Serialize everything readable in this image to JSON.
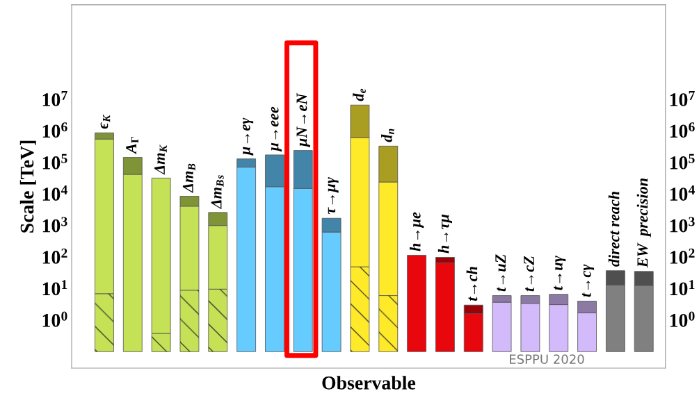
{
  "chart_data": {
    "type": "bar",
    "log": true,
    "categories": [
      "ϵ$_{K}$",
      "A$_{Γ}$",
      "Δm$_{K}$",
      "Δm$_{B}$",
      "Δm$_{B}$$_{s}$",
      "μ→eγ",
      "μ→eee",
      "μN→eN",
      "τ→μγ",
      "d$_{e}$",
      "d$_{n}$",
      "h→μe",
      "h→τμ",
      "t→ch",
      "t→uZ",
      "t→cZ",
      "t→uγ",
      "t→cγ",
      "direct reach",
      "EW  precision"
    ],
    "series": [
      {
        "colors": [
          "#c5e155",
          "#c5e155",
          "#c5e155",
          "#c5e155",
          "#c5e155",
          "#66ccff",
          "#66ccff",
          "#66ccff",
          "#66ccff",
          "#ffea2a",
          "#ffea2a",
          "#e8070d",
          "#e8070d",
          "#e8070d",
          "#d3bafb",
          "#d3bafb",
          "#d3bafb",
          "#d3bafb",
          "#808080",
          "#808080"
        ],
        "base": [
          0.1,
          null,
          0.1,
          0.1,
          0.1,
          null,
          null,
          null,
          null,
          0.1,
          0.1,
          null,
          null,
          null,
          null,
          null,
          null,
          null,
          null,
          null
        ],
        "values": [
          6.8,
          null,
          0.28,
          8.8,
          9.5,
          null,
          null,
          null,
          null,
          49,
          5.9,
          null,
          null,
          null,
          null,
          null,
          null,
          null,
          null,
          null
        ]
      },
      {
        "colors": [
          "#c5e155",
          "#c5e155",
          "#c5e155",
          "#c5e155",
          "#c5e155",
          "#66ccff",
          "#66ccff",
          "#66ccff",
          "#66ccff",
          "#ffea2a",
          "#ffea2a",
          "#e8070d",
          "#e8070d",
          "#e8070d",
          "#d3bafb",
          "#d3bafb",
          "#d3bafb",
          "#d3bafb",
          "#808080",
          "#808080"
        ],
        "base": [
          6.9,
          0.1,
          0.38,
          8.9,
          9.6,
          0.1,
          0.1,
          0.1,
          0.1,
          49.1,
          6.0,
          0.1,
          0.1,
          0.1,
          0.1,
          0.1,
          0.1,
          0.1,
          0.1,
          0.1
        ],
        "values": [
          550000,
          42000,
          32000,
          4100,
          990,
          71000,
          17000,
          15000,
          620,
          610000,
          24000,
          114,
          66,
          1.5,
          3.6,
          3.3,
          3.0,
          1.6,
          12.9,
          12.5
        ]
      },
      {
        "colors": [
          "#7f9437",
          "#7f9437",
          "#7f9437",
          "#7f9437",
          "#7f9437",
          "#4385a8",
          "#4385a8",
          "#4385a8",
          "#4385a8",
          "#a99e21",
          "#a99e21",
          "#9a0208",
          "#9a0208",
          "#9a0208",
          "#8c7aa4",
          "#8c7aa4",
          "#8c7aa4",
          "#8c7aa4",
          "#4f4f4f",
          "#4f4f4f"
        ],
        "base": [
          550000,
          42000,
          null,
          4100,
          1000,
          71000,
          17000,
          15000,
          620,
          610000,
          24000,
          null,
          66,
          1.6,
          3.7,
          3.4,
          3.1,
          1.7,
          13,
          12.6
        ],
        "values": [
          320000,
          103000,
          null,
          4400,
          1600,
          59000,
          157000,
          225000,
          1080,
          6000000,
          306000,
          null,
          32,
          1.4,
          2.3,
          2.6,
          3.5,
          2.3,
          24,
          22.4
        ]
      }
    ],
    "ylabel": "Scale [TeV]",
    "xlabel": "Observable",
    "ylim": [
      0.03,
      10000000000
    ],
    "yticks": [
      {
        "value": 1,
        "label": "10$^{0}$"
      },
      {
        "value": 10,
        "label": "10$^{1}$"
      },
      {
        "value": 100,
        "label": "10$^{2}$"
      },
      {
        "value": 1000,
        "label": "10$^{3}$"
      },
      {
        "value": 10000,
        "label": "10$^{4}$"
      },
      {
        "value": 100000,
        "label": "10$^{5}$"
      },
      {
        "value": 1000000,
        "label": "10$^{6}$"
      },
      {
        "value": 10000000,
        "label": "10$^{7}$"
      }
    ],
    "tick_labels": "y",
    "grid": false,
    "legend": false,
    "annotations": [
      "ESPPU 2020"
    ]
  }
}
